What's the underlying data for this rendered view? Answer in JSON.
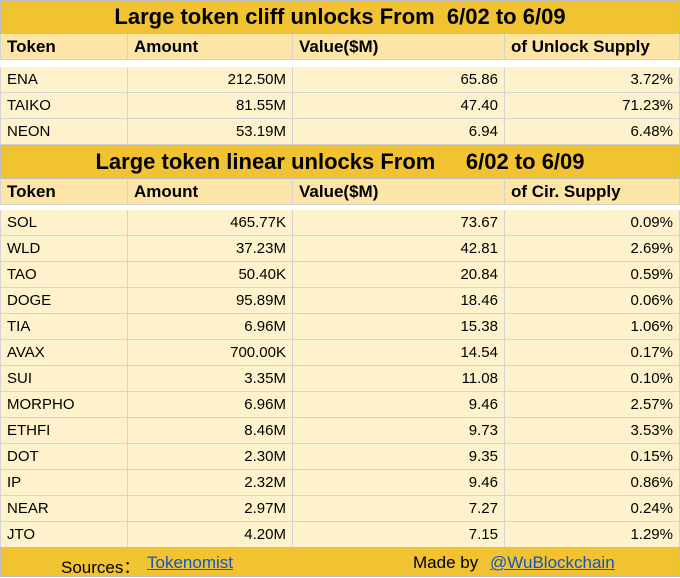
{
  "cliff": {
    "title": "Large token cliff unlocks From  6/02 to 6/09",
    "headers": [
      "Token",
      "Amount",
      "Value($M)",
      "of Unlock Supply"
    ],
    "rows": [
      [
        "ENA",
        "212.50M",
        "65.86",
        "3.72%"
      ],
      [
        "TAIKO",
        "81.55M",
        "47.40",
        "71.23%"
      ],
      [
        "NEON",
        "53.19M",
        "6.94",
        "6.48%"
      ]
    ]
  },
  "linear": {
    "title": "Large token linear unlocks From     6/02 to 6/09",
    "headers": [
      "Token",
      "Amount",
      "Value($M)",
      "of Cir. Supply"
    ],
    "rows": [
      [
        "SOL",
        "465.77K",
        "73.67",
        "0.09%"
      ],
      [
        "WLD",
        "37.23M",
        "42.81",
        "2.69%"
      ],
      [
        "TAO",
        "50.40K",
        "20.84",
        "0.59%"
      ],
      [
        "DOGE",
        "95.89M",
        "18.46",
        "0.06%"
      ],
      [
        "TIA",
        "6.96M",
        "15.38",
        "1.06%"
      ],
      [
        "AVAX",
        "700.00K",
        "14.54",
        "0.17%"
      ],
      [
        "SUI",
        "3.35M",
        "11.08",
        "0.10%"
      ],
      [
        "MORPHO",
        "6.96M",
        "9.46",
        "2.57%"
      ],
      [
        "ETHFI",
        "8.46M",
        "9.73",
        "3.53%"
      ],
      [
        "DOT",
        "2.30M",
        "9.35",
        "0.15%"
      ],
      [
        "IP",
        "2.32M",
        "9.46",
        "0.86%"
      ],
      [
        "NEAR",
        "2.97M",
        "7.27",
        "0.24%"
      ],
      [
        "JTO",
        "4.20M",
        "7.15",
        "1.29%"
      ]
    ]
  },
  "footer": {
    "sources_label": "Sources：",
    "sources_link": "Tokenomist",
    "made_label": "Made by",
    "made_link": "@WuBlockchain"
  },
  "colors": {
    "title_bg": "#f1c232",
    "header_bg": "#fce5a6",
    "row_bg": "#fdf2cc",
    "link": "#1155cc"
  }
}
